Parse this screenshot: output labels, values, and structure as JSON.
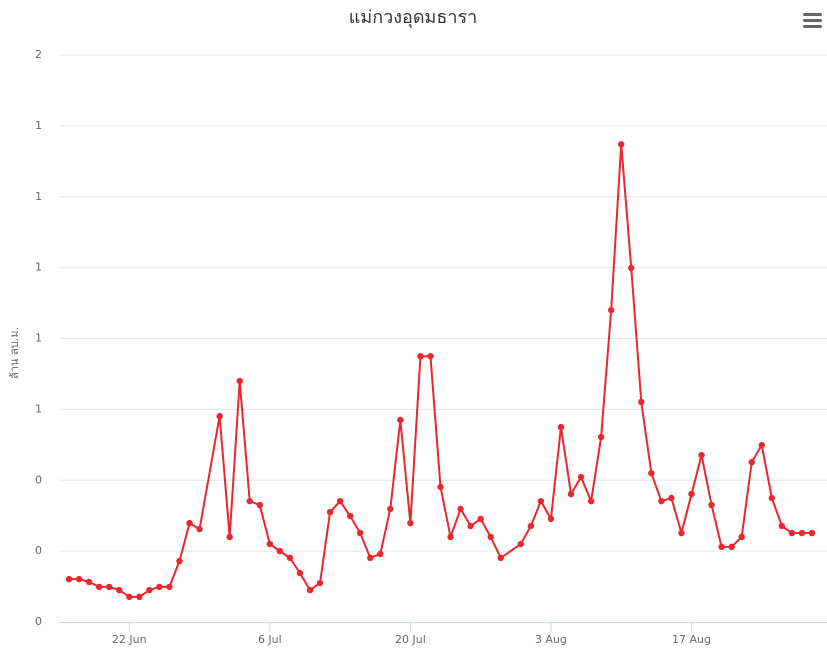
{
  "chart_data": {
    "type": "line",
    "title": "แม่กวงอุดมธารา",
    "y_label": "ล้าน ลบ.ม.",
    "x": [
      "16 Jun",
      "17 Jun",
      "18 Jun",
      "19 Jun",
      "20 Jun",
      "21 Jun",
      "22 Jun",
      "23 Jun",
      "24 Jun",
      "25 Jun",
      "26 Jun",
      "27 Jun",
      "28 Jun",
      "29 Jun",
      "1 Jul",
      "2 Jul",
      "3 Jul",
      "4 Jul",
      "5 Jul",
      "6 Jul",
      "7 Jul",
      "8 Jul",
      "9 Jul",
      "10 Jul",
      "11 Jul",
      "12 Jul",
      "13 Jul",
      "14 Jul",
      "15 Jul",
      "16 Jul",
      "17 Jul",
      "18 Jul",
      "19 Jul",
      "20 Jul",
      "21 Jul",
      "22 Jul",
      "23 Jul",
      "24 Jul",
      "25 Jul",
      "26 Jul",
      "27 Jul",
      "28 Jul",
      "29 Jul",
      "31 Jul",
      "1 Aug",
      "2 Aug",
      "3 Aug",
      "4 Aug",
      "5 Aug",
      "6 Aug",
      "7 Aug",
      "8 Aug",
      "9 Aug",
      "10 Aug",
      "11 Aug",
      "12 Aug",
      "13 Aug",
      "14 Aug",
      "15 Aug",
      "16 Aug",
      "17 Aug",
      "18 Aug",
      "19 Aug",
      "20 Aug",
      "21 Aug",
      "22 Aug",
      "23 Aug",
      "24 Aug",
      "25 Aug",
      "26 Aug",
      "27 Aug",
      "28 Aug",
      "29 Aug"
    ],
    "series": [
      {
        "color": "#e8272e",
        "values": [
          0.121,
          0.121,
          0.113,
          0.099,
          0.099,
          0.09,
          0.071,
          0.071,
          0.09,
          0.099,
          0.099,
          0.172,
          0.279,
          0.262,
          0.581,
          0.24,
          0.68,
          0.341,
          0.33,
          0.22,
          0.2,
          0.181,
          0.138,
          0.09,
          0.11,
          0.31,
          0.341,
          0.299,
          0.251,
          0.181,
          0.192,
          0.319,
          0.57,
          0.279,
          0.75,
          0.75,
          0.381,
          0.24,
          0.319,
          0.271,
          0.291,
          0.24,
          0.181,
          0.22,
          0.271,
          0.341,
          0.291,
          0.55,
          0.361,
          0.409,
          0.341,
          0.522,
          0.88,
          1.348,
          0.999,
          0.621,
          0.42,
          0.341,
          0.35,
          0.251,
          0.361,
          0.471,
          0.33,
          0.212,
          0.212,
          0.24,
          0.451,
          0.499,
          0.35,
          0.271,
          0.251,
          0.251,
          0.251
        ]
      }
    ],
    "xlim": [
      "15 Jun",
      "30 Aug"
    ],
    "xticks": [
      "22 Jun",
      "6 Jul",
      "20 Jul",
      "3 Aug",
      "17 Aug"
    ],
    "ylim": [
      0,
      1.6
    ],
    "yticks": [
      0,
      {
        "value": 0.2,
        "label": "0"
      },
      {
        "value": 0.4,
        "label": "0"
      },
      {
        "value": 0.6,
        "label": "1"
      },
      {
        "value": 0.8,
        "label": "1"
      },
      1,
      {
        "value": 1.2,
        "label": "1"
      },
      {
        "value": 1.4,
        "label": "1"
      },
      {
        "value": 1.6,
        "label": "2"
      }
    ],
    "grid": true
  }
}
